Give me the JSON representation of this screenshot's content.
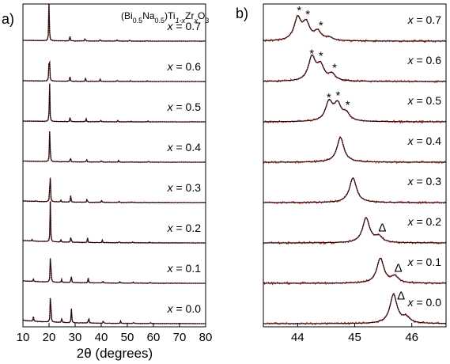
{
  "figure": {
    "formula": {
      "open": "(Bi",
      "s1": "0.5",
      "mid1": "Na",
      "s2": "0.5",
      "mid2": ")Ti",
      "s3": "1-x",
      "mid3": "Zr",
      "s4": "x",
      "mid4": "O",
      "s5": "3"
    },
    "compositions": [
      "x = 0.7",
      "x = 0.6",
      "x = 0.5",
      "x = 0.4",
      "x = 0.3",
      "x = 0.2",
      "x = 0.1",
      "x = 0.0"
    ],
    "colors": {
      "observed": "#d01010",
      "fit": "#111111",
      "axis": "#000000"
    }
  },
  "chart_data": [
    {
      "type": "line",
      "panel_label": "a)",
      "xlabel": "2θ (degrees)",
      "ylabel": "",
      "xlim": [
        10,
        80
      ],
      "xticks": [
        "10",
        "20",
        "30",
        "40",
        "50",
        "60",
        "70",
        "80"
      ],
      "series": [
        {
          "name": "x = 0.7",
          "baseline": 0.02,
          "peaks": [
            {
              "x": 20.0,
              "h": 1.0
            },
            {
              "x": 28.0,
              "h": 0.12
            },
            {
              "x": 33.8,
              "h": 0.08
            },
            {
              "x": 39.5,
              "h": 0.05
            },
            {
              "x": 46.0,
              "h": 0.04
            },
            {
              "x": 51.0,
              "h": 0.02
            },
            {
              "x": 57.5,
              "h": 0.02
            }
          ]
        },
        {
          "name": "x = 0.6",
          "baseline": 0.02,
          "peaks": [
            {
              "x": 20.1,
              "h": 1.0
            },
            {
              "x": 28.0,
              "h": 0.12
            },
            {
              "x": 34.0,
              "h": 0.08
            },
            {
              "x": 39.6,
              "h": 0.05
            },
            {
              "x": 46.2,
              "h": 0.04
            },
            {
              "x": 51.2,
              "h": 0.02
            },
            {
              "x": 57.7,
              "h": 0.02
            }
          ]
        },
        {
          "name": "x = 0.5",
          "baseline": 0.02,
          "peaks": [
            {
              "x": 20.2,
              "h": 1.0
            },
            {
              "x": 28.1,
              "h": 0.12
            },
            {
              "x": 34.2,
              "h": 0.08
            },
            {
              "x": 39.8,
              "h": 0.05
            },
            {
              "x": 46.4,
              "h": 0.04
            },
            {
              "x": 51.4,
              "h": 0.02
            },
            {
              "x": 57.9,
              "h": 0.02
            }
          ]
        },
        {
          "name": "x = 0.4",
          "baseline": 0.03,
          "peaks": [
            {
              "x": 20.3,
              "h": 1.0
            },
            {
              "x": 28.2,
              "h": 0.14
            },
            {
              "x": 34.4,
              "h": 0.09
            },
            {
              "x": 40.0,
              "h": 0.05
            },
            {
              "x": 46.6,
              "h": 0.04
            },
            {
              "x": 51.6,
              "h": 0.02
            },
            {
              "x": 58.1,
              "h": 0.02
            }
          ]
        },
        {
          "name": "x = 0.3",
          "baseline": 0.04,
          "peaks": [
            {
              "x": 15.0,
              "h": 0.02
            },
            {
              "x": 20.4,
              "h": 1.0
            },
            {
              "x": 24.5,
              "h": 0.05
            },
            {
              "x": 28.3,
              "h": 0.16
            },
            {
              "x": 34.6,
              "h": 0.1
            },
            {
              "x": 40.2,
              "h": 0.05
            },
            {
              "x": 46.8,
              "h": 0.04
            },
            {
              "x": 51.8,
              "h": 0.02
            }
          ]
        },
        {
          "name": "x = 0.2",
          "baseline": 0.06,
          "peaks": [
            {
              "x": 13.5,
              "h": 0.04
            },
            {
              "x": 20.5,
              "h": 1.0
            },
            {
              "x": 24.5,
              "h": 0.06
            },
            {
              "x": 28.4,
              "h": 0.18
            },
            {
              "x": 34.8,
              "h": 0.12
            },
            {
              "x": 40.4,
              "h": 0.06
            },
            {
              "x": 47.0,
              "h": 0.04
            },
            {
              "x": 52.0,
              "h": 0.02
            },
            {
              "x": 58.5,
              "h": 0.02
            }
          ]
        },
        {
          "name": "x = 0.1",
          "baseline": 0.06,
          "peaks": [
            {
              "x": 14.0,
              "h": 0.06
            },
            {
              "x": 20.6,
              "h": 1.0
            },
            {
              "x": 24.8,
              "h": 0.07
            },
            {
              "x": 28.5,
              "h": 0.2
            },
            {
              "x": 35.0,
              "h": 0.13
            },
            {
              "x": 40.6,
              "h": 0.06
            },
            {
              "x": 47.2,
              "h": 0.04
            },
            {
              "x": 52.2,
              "h": 0.03
            },
            {
              "x": 58.7,
              "h": 0.02
            }
          ]
        },
        {
          "name": "x = 0.0",
          "baseline": 0.08,
          "peaks": [
            {
              "x": 14.0,
              "h": 0.12
            },
            {
              "x": 20.6,
              "h": 1.0
            },
            {
              "x": 24.9,
              "h": 0.14
            },
            {
              "x": 28.6,
              "h": 0.36
            },
            {
              "x": 35.2,
              "h": 0.18
            },
            {
              "x": 40.8,
              "h": 0.08
            },
            {
              "x": 47.4,
              "h": 0.06
            },
            {
              "x": 52.4,
              "h": 0.04
            },
            {
              "x": 58.9,
              "h": 0.03
            }
          ]
        }
      ]
    },
    {
      "type": "line",
      "panel_label": "b)",
      "xlabel": "",
      "ylabel": "",
      "xlim": [
        43.4,
        46.6
      ],
      "xticks": [
        "44",
        "45",
        "46"
      ],
      "series": [
        {
          "name": "x = 0.7",
          "peaks": [
            {
              "x": 44.0,
              "h": 0.75
            },
            {
              "x": 44.15,
              "h": 0.55
            },
            {
              "x": 44.35,
              "h": 0.3
            },
            {
              "x": 44.55,
              "h": 0.1
            }
          ],
          "markers": [
            {
              "x": 44.0,
              "symbol": "*"
            },
            {
              "x": 44.15,
              "symbol": "*"
            },
            {
              "x": 44.38,
              "symbol": "*"
            }
          ]
        },
        {
          "name": "x = 0.6",
          "peaks": [
            {
              "x": 44.25,
              "h": 0.8
            },
            {
              "x": 44.4,
              "h": 0.5
            },
            {
              "x": 44.6,
              "h": 0.22
            }
          ],
          "markers": [
            {
              "x": 44.22,
              "symbol": "*"
            },
            {
              "x": 44.38,
              "symbol": "*"
            },
            {
              "x": 44.62,
              "symbol": "*"
            }
          ]
        },
        {
          "name": "x = 0.5",
          "peaks": [
            {
              "x": 44.55,
              "h": 0.65
            },
            {
              "x": 44.7,
              "h": 0.55
            },
            {
              "x": 44.85,
              "h": 0.25
            }
          ],
          "markers": [
            {
              "x": 44.52,
              "symbol": "*"
            },
            {
              "x": 44.68,
              "symbol": "*"
            },
            {
              "x": 44.85,
              "symbol": "*"
            }
          ]
        },
        {
          "name": "x = 0.4",
          "peaks": [
            {
              "x": 44.75,
              "h": 0.85
            }
          ],
          "markers": []
        },
        {
          "name": "x = 0.3",
          "peaks": [
            {
              "x": 44.97,
              "h": 0.85
            }
          ],
          "markers": []
        },
        {
          "name": "x = 0.2",
          "peaks": [
            {
              "x": 45.2,
              "h": 0.85
            },
            {
              "x": 45.42,
              "h": 0.2
            }
          ],
          "markers": [
            {
              "x": 45.4,
              "symbol": "Δ"
            }
          ]
        },
        {
          "name": "x = 0.1",
          "peaks": [
            {
              "x": 45.45,
              "h": 0.85
            },
            {
              "x": 45.7,
              "h": 0.22
            }
          ],
          "markers": [
            {
              "x": 45.68,
              "symbol": "Δ"
            }
          ]
        },
        {
          "name": "x = 0.0",
          "peaks": [
            {
              "x": 45.68,
              "h": 1.0
            },
            {
              "x": 45.9,
              "h": 0.2
            }
          ],
          "markers": [
            {
              "x": 45.73,
              "symbol": "Δ"
            }
          ]
        }
      ]
    }
  ]
}
